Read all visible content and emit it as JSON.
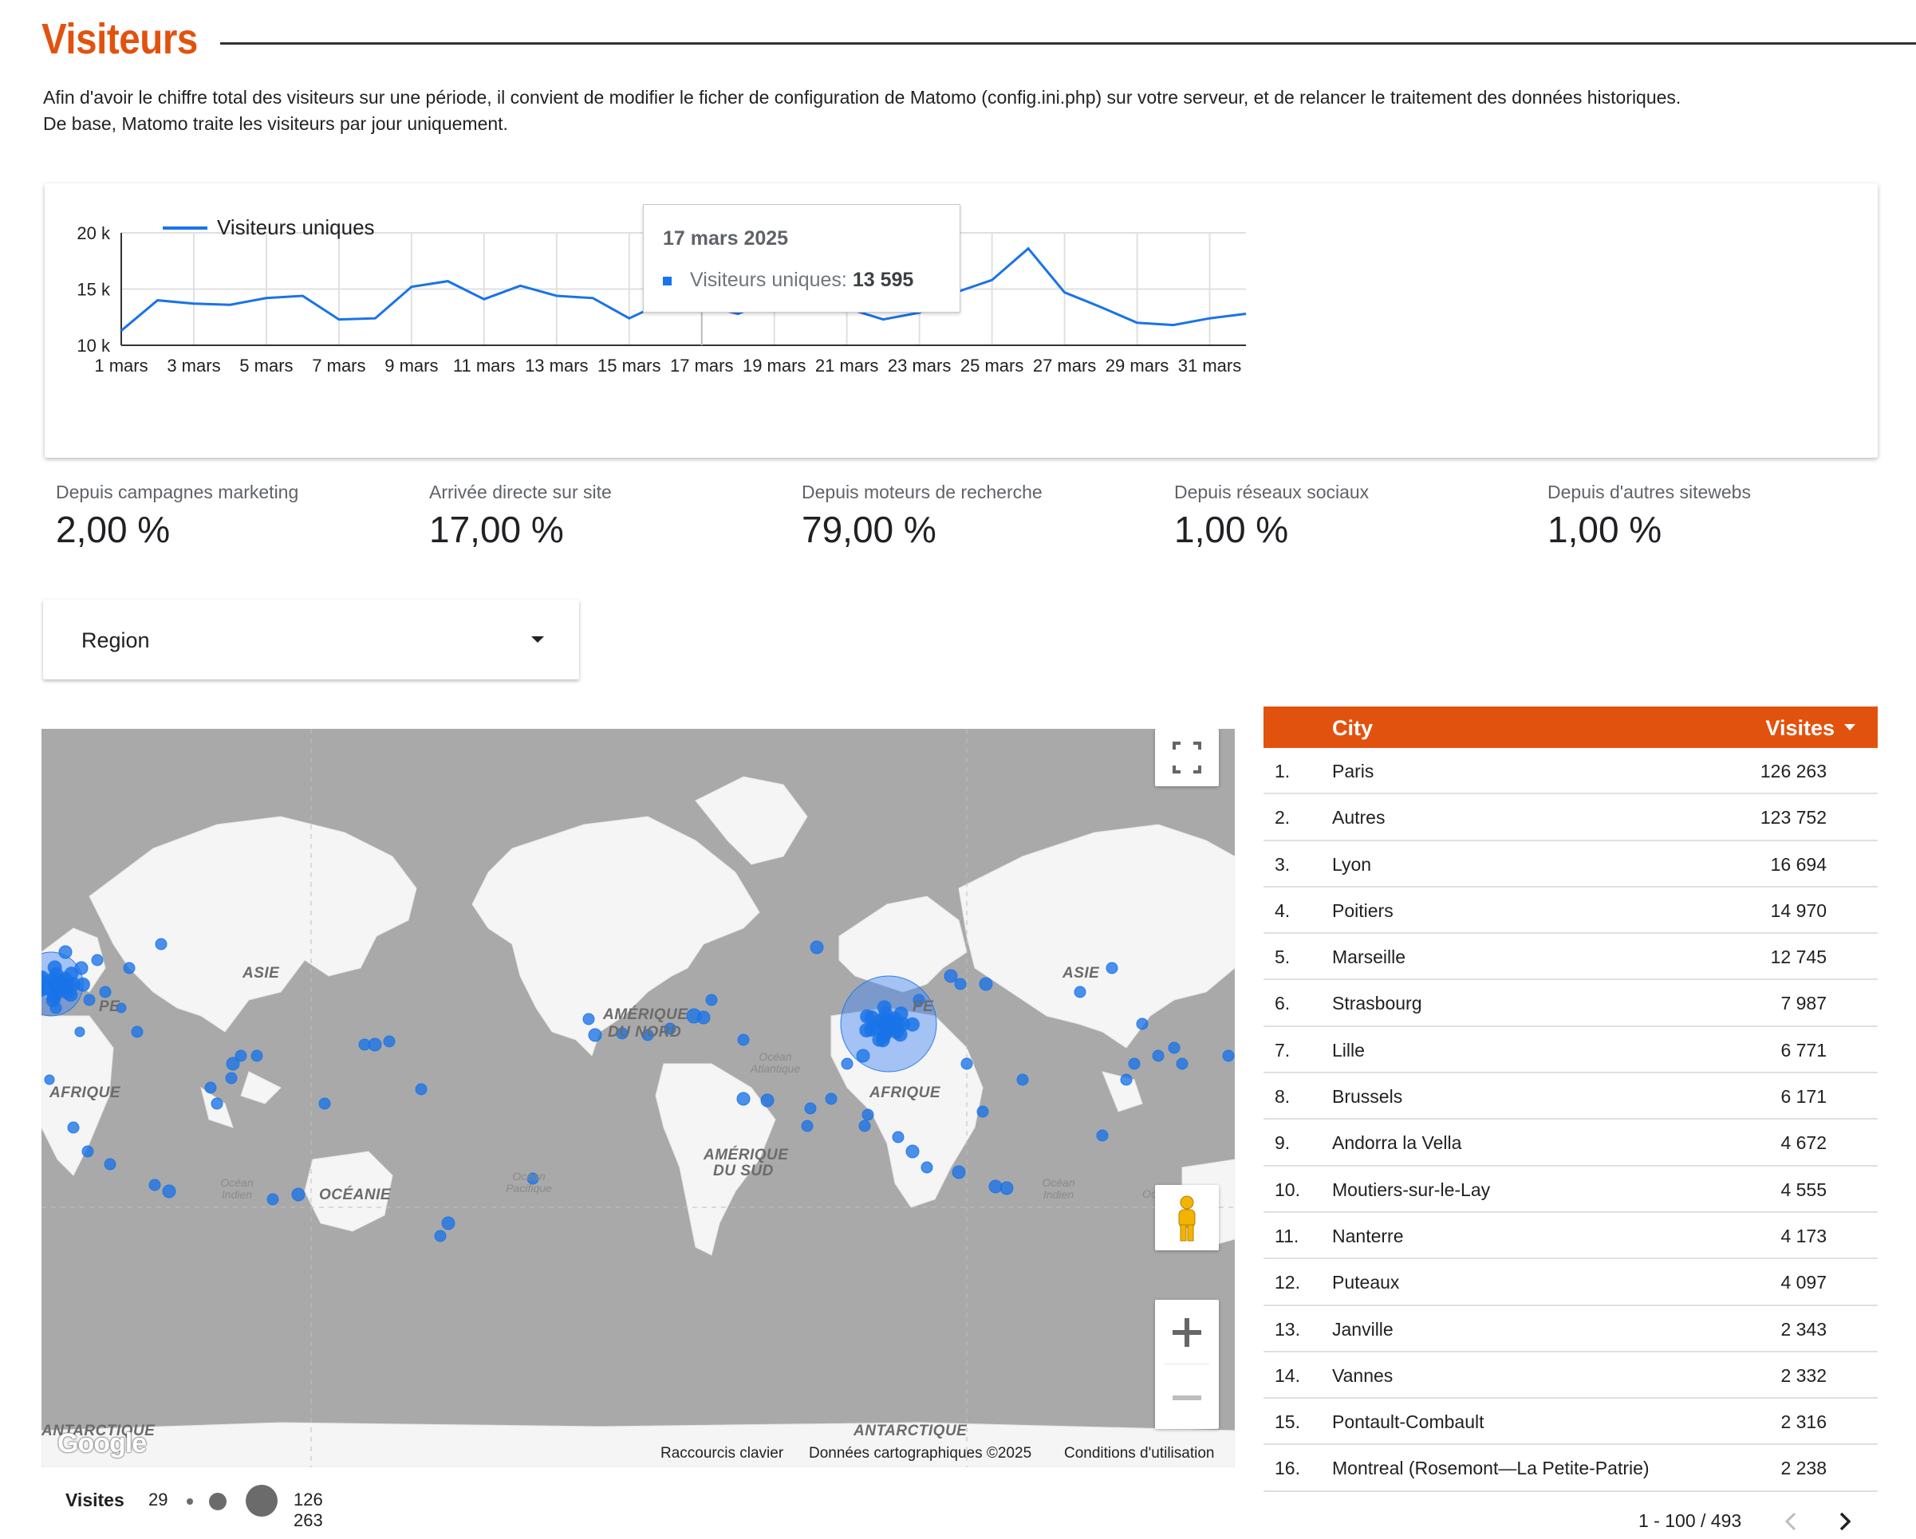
{
  "page": {
    "title": "Visiteurs",
    "intro_line1": "Afin d'avoir le chiffre total des visiteurs sur une période, il convient de modifier le ficher de configuration de Matomo (config.ini.php) sur votre serveur, et de relancer le traitement des données historiques.",
    "intro_line2": "De base, Matomo traite les visiteurs par jour uniquement."
  },
  "colors": {
    "accent": "#e2520f",
    "series": "#1a73e8",
    "map_land": "#f5f5f5",
    "map_water": "#a9a9a9"
  },
  "chart_data": {
    "type": "line",
    "series": [
      {
        "name": "Visiteurs uniques",
        "x": [
          "1 mars",
          "2 mars",
          "3 mars",
          "4 mars",
          "5 mars",
          "6 mars",
          "7 mars",
          "8 mars",
          "9 mars",
          "10 mars",
          "11 mars",
          "12 mars",
          "13 mars",
          "14 mars",
          "15 mars",
          "16 mars",
          "17 mars",
          "18 mars",
          "19 mars",
          "20 mars",
          "21 mars",
          "22 mars",
          "23 mars",
          "24 mars",
          "25 mars",
          "26 mars",
          "27 mars",
          "28 mars",
          "29 mars",
          "30 mars",
          "31 mars",
          "1 avr."
        ],
        "values": [
          11300,
          14000,
          13700,
          13600,
          14200,
          14400,
          12300,
          12400,
          15200,
          15700,
          14100,
          15300,
          14400,
          14200,
          12400,
          13900,
          13595,
          12800,
          14100,
          14300,
          13300,
          12300,
          12900,
          14700,
          15800,
          18600,
          14700,
          13400,
          12000,
          11800,
          12400,
          12800
        ]
      }
    ],
    "xticks": [
      "1 mars",
      "3 mars",
      "5 mars",
      "7 mars",
      "9 mars",
      "11 mars",
      "13 mars",
      "15 mars",
      "17 mars",
      "19 mars",
      "21 mars",
      "23 mars",
      "25 mars",
      "27 mars",
      "29 mars",
      "31 mars"
    ],
    "yticks": [
      "10 k",
      "15 k",
      "20 k"
    ],
    "ylim": [
      10000,
      20000
    ],
    "grid": true,
    "legend": "top-left",
    "tooltip": {
      "date": "17 mars 2025",
      "label": "Visiteurs uniques:",
      "value": "13 595"
    }
  },
  "stats": [
    {
      "label": "Depuis campagnes marketing",
      "value": "2,00 %"
    },
    {
      "label": "Arrivée directe sur site",
      "value": "17,00 %"
    },
    {
      "label": "Depuis moteurs de recherche",
      "value": "79,00 %"
    },
    {
      "label": "Depuis réseaux sociaux",
      "value": "1,00 %"
    },
    {
      "label": "Depuis d'autres sitewebs",
      "value": "1,00 %"
    }
  ],
  "region_select": {
    "label": "Region",
    "icon": "caret-down-icon"
  },
  "map": {
    "labels": [
      "ASIE",
      "AFRIQUE",
      "OCÉANIE",
      "AMÉRIQUE",
      "DU NORD",
      "AMÉRIQUE",
      "DU SUD",
      "ASIE",
      "AFRIQUE",
      "ANTARCTIQUE",
      "ANTARCTIQUE",
      "PE",
      "PE"
    ],
    "oceans": [
      "Océan Indien",
      "Océan Pacifique",
      "Océan Atlantique",
      "Océan Indien",
      "Oc"
    ],
    "attribution": {
      "shortcuts": "Raccourcis clavier",
      "data": "Données cartographiques ©2025",
      "terms": "Conditions d'utilisation"
    },
    "logo": "Google",
    "controls": {
      "fullscreen_icon": "fullscreen-icon",
      "pegman_icon": "pegman-icon",
      "zoom_in_icon": "plus-icon",
      "zoom_out_icon": "minus-icon"
    }
  },
  "legend": {
    "title": "Visites",
    "min": "29",
    "max": "126 263"
  },
  "table": {
    "headers": {
      "city": "City",
      "visits": "Visites"
    },
    "rows": [
      {
        "rank": "1.",
        "city": "Paris",
        "visits": "126 263"
      },
      {
        "rank": "2.",
        "city": "Autres",
        "visits": "123 752"
      },
      {
        "rank": "3.",
        "city": "Lyon",
        "visits": "16 694"
      },
      {
        "rank": "4.",
        "city": "Poitiers",
        "visits": "14 970"
      },
      {
        "rank": "5.",
        "city": "Marseille",
        "visits": "12 745"
      },
      {
        "rank": "6.",
        "city": "Strasbourg",
        "visits": "7 987"
      },
      {
        "rank": "7.",
        "city": "Lille",
        "visits": "6 771"
      },
      {
        "rank": "8.",
        "city": "Brussels",
        "visits": "6 171"
      },
      {
        "rank": "9.",
        "city": "Andorra la Vella",
        "visits": "4 672"
      },
      {
        "rank": "10.",
        "city": "Moutiers-sur-le-Lay",
        "visits": "4 555"
      },
      {
        "rank": "11.",
        "city": "Nanterre",
        "visits": "4 173"
      },
      {
        "rank": "12.",
        "city": "Puteaux",
        "visits": "4 097"
      },
      {
        "rank": "13.",
        "city": "Janville",
        "visits": "2 343"
      },
      {
        "rank": "14.",
        "city": "Vannes",
        "visits": "2 332"
      },
      {
        "rank": "15.",
        "city": "Pontault-Combault",
        "visits": "2 316"
      },
      {
        "rank": "16.",
        "city": "Montreal (Rosemont—La Petite-Patrie)",
        "visits": "2 238"
      }
    ],
    "pagination": "1 - 100 / 493"
  }
}
